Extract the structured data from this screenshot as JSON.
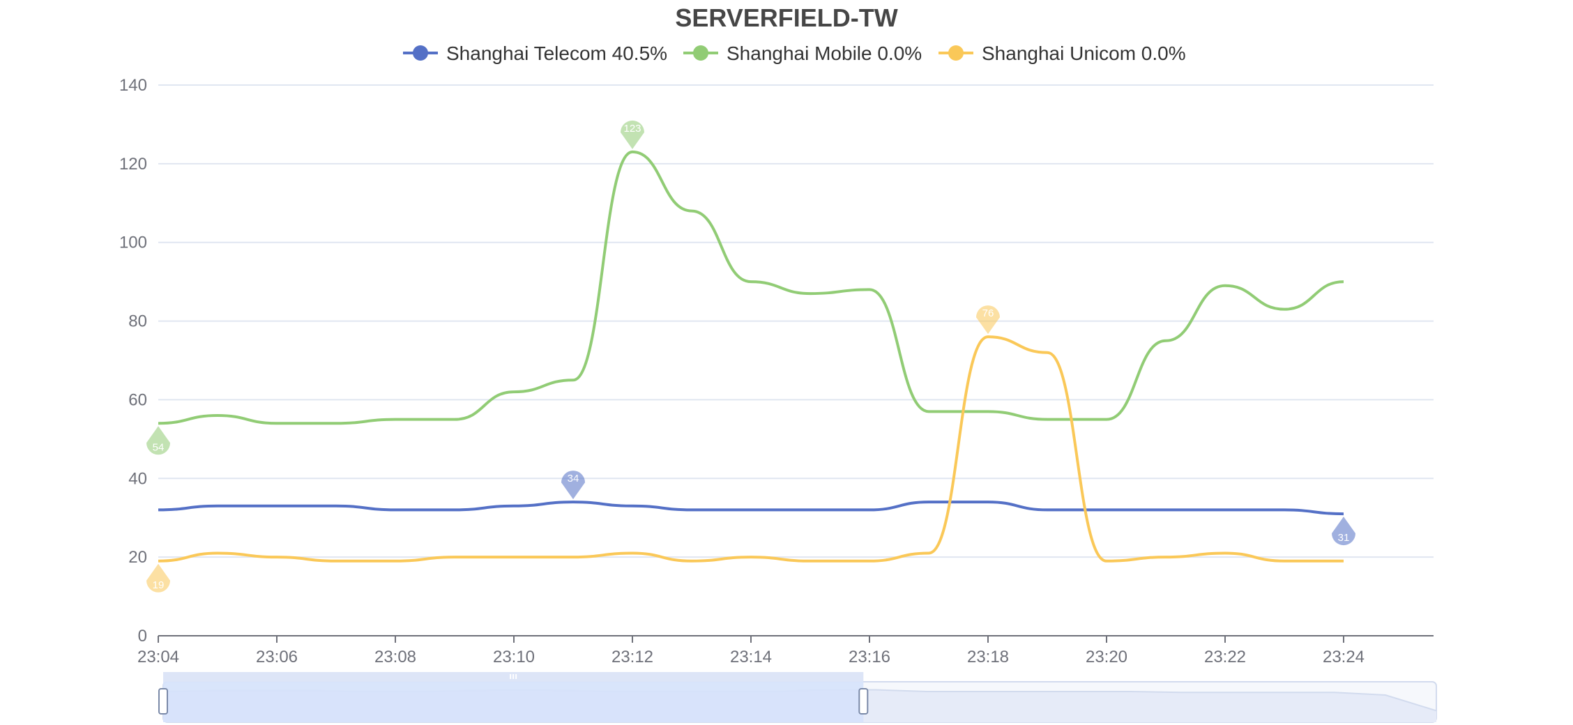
{
  "chart_data": {
    "type": "line",
    "title": "SERVERFIELD-TW",
    "x": [
      "23:04",
      "23:05",
      "23:06",
      "23:07",
      "23:08",
      "23:09",
      "23:10",
      "23:11",
      "23:12",
      "23:13",
      "23:14",
      "23:15",
      "23:16",
      "23:17",
      "23:18",
      "23:19",
      "23:20",
      "23:21",
      "23:22",
      "23:23",
      "23:24"
    ],
    "x_tick_labels": [
      "23:04",
      "23:06",
      "23:08",
      "23:10",
      "23:12",
      "23:14",
      "23:16",
      "23:18",
      "23:20",
      "23:22",
      "23:24"
    ],
    "ylim": [
      0,
      140
    ],
    "y_ticks": [
      0,
      20,
      40,
      60,
      80,
      100,
      120,
      140
    ],
    "grid": true,
    "legend_position": "top-center",
    "series": [
      {
        "name": "Shanghai Telecom 40.5%",
        "color": "#5470c6",
        "values": [
          32,
          33,
          33,
          33,
          32,
          32,
          33,
          34,
          33,
          32,
          32,
          32,
          32,
          34,
          34,
          32,
          32,
          32,
          32,
          32,
          31
        ],
        "markers": [
          {
            "x": "23:11",
            "value": 34,
            "label": "34",
            "kind": "max"
          },
          {
            "x": "23:24",
            "value": 31,
            "label": "31",
            "kind": "min"
          }
        ]
      },
      {
        "name": "Shanghai Mobile 0.0%",
        "color": "#91cc75",
        "values": [
          54,
          56,
          54,
          54,
          55,
          55,
          62,
          65,
          123,
          108,
          90,
          87,
          88,
          57,
          57,
          55,
          55,
          75,
          89,
          83,
          90
        ],
        "markers": [
          {
            "x": "23:12",
            "value": 123,
            "label": "123",
            "kind": "max"
          },
          {
            "x": "23:04",
            "value": 54,
            "label": "54",
            "kind": "min"
          }
        ]
      },
      {
        "name": "Shanghai Unicom 0.0%",
        "color": "#fac858",
        "values": [
          19,
          21,
          20,
          19,
          19,
          20,
          20,
          20,
          21,
          19,
          20,
          19,
          19,
          21,
          76,
          72,
          19,
          20,
          21,
          19,
          19
        ],
        "markers": [
          {
            "x": "23:18",
            "value": 76,
            "label": "76",
            "kind": "max"
          },
          {
            "x": "23:04",
            "value": 19,
            "label": "19",
            "kind": "min"
          }
        ]
      }
    ],
    "data_zoom": {
      "start_percent": 0,
      "end_percent": 55,
      "handle_color": "#ffffff",
      "fill_color": "#d6e2fb",
      "preview_values": [
        32,
        33,
        33,
        33,
        32,
        32,
        33,
        34,
        33,
        32,
        32,
        32,
        32,
        34,
        34,
        32,
        32,
        32,
        32,
        32,
        31,
        31,
        31,
        31,
        28,
        10
      ]
    }
  }
}
